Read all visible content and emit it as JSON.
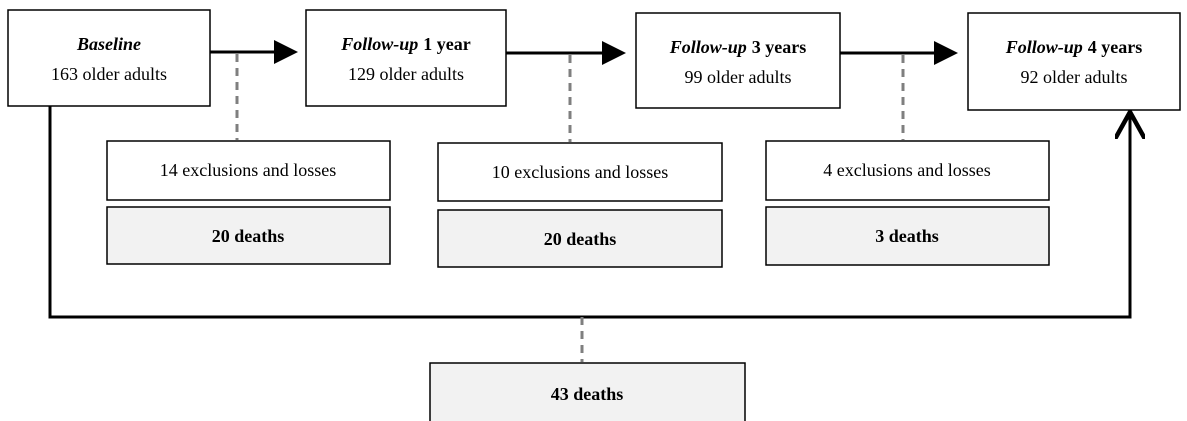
{
  "stages": [
    {
      "name": "Baseline",
      "count": "163 older adults"
    },
    {
      "name": "Follow-up",
      "period": "1 year",
      "count": "129 older adults"
    },
    {
      "name": "Follow-up",
      "period": "3 years",
      "count": "99 older adults"
    },
    {
      "name": "Follow-up",
      "period": "4 years",
      "count": "92 older adults"
    }
  ],
  "intervals": [
    {
      "exclusions": "14 exclusions and losses",
      "deaths": "20 deaths"
    },
    {
      "exclusions": "10 exclusions and losses",
      "deaths": "20 deaths"
    },
    {
      "exclusions": "4 exclusions and losses",
      "deaths": "3 deaths"
    }
  ],
  "total_deaths": "43 deaths"
}
